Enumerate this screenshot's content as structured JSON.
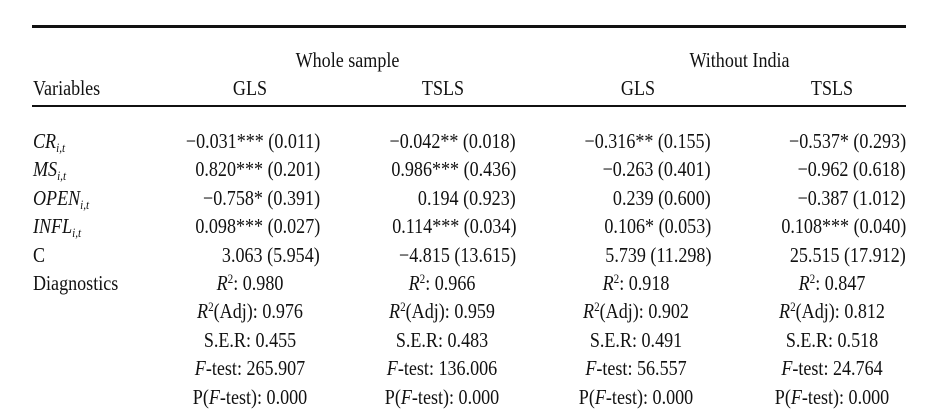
{
  "groups": {
    "whole": "Whole sample",
    "without": "Without India"
  },
  "columns": {
    "var": "Variables",
    "c1": "GLS",
    "c2": "TSLS",
    "c3": "GLS",
    "c4": "TSLS"
  },
  "rows": [
    {
      "base": "CR",
      "sub": "i,t",
      "vals": [
        "−0.031*** (0.011)",
        "−0.042** (0.018)",
        "−0.316** (0.155)",
        "−0.537* (0.293)"
      ]
    },
    {
      "base": "MS",
      "sub": "i,t",
      "vals": [
        "0.820*** (0.201)",
        "0.986*** (0.436)",
        "−0.263 (0.401)",
        "−0.962 (0.618)"
      ]
    },
    {
      "base": "OPEN",
      "sub": "i,t",
      "vals": [
        "−0.758* (0.391)",
        "0.194 (0.923)",
        "0.239 (0.600)",
        "−0.387 (1.012)"
      ]
    },
    {
      "base": "INFL",
      "sub": "i,t",
      "vals": [
        "0.098*** (0.027)",
        "0.114*** (0.034)",
        "0.106* (0.053)",
        "0.108*** (0.040)"
      ]
    },
    {
      "base": "C",
      "vals": [
        "3.063 (5.954)",
        "−4.815 (13.615)",
        "5.739 (11.298)",
        "25.515 (17.912)"
      ]
    }
  ],
  "diagnostics": {
    "label": "Diagnostics",
    "r2_prefix": "R",
    "r2_sup": "2",
    "r2_suffix": ": ",
    "r2_values": [
      "0.980",
      "0.966",
      "0.918",
      "0.847"
    ],
    "adj_prefix": "R",
    "adj_sup": "2",
    "adj_suffix": "(Adj): ",
    "adj_values": [
      "0.976",
      "0.959",
      "0.902",
      "0.812"
    ],
    "ser_label": "S.E.R: ",
    "ser_values": [
      "0.455",
      "0.483",
      "0.491",
      "0.518"
    ],
    "f_italic": "F",
    "f_suffix": "-test: ",
    "f_values": [
      "265.907",
      "136.006",
      "56.557",
      "24.764"
    ],
    "p_prefix": "P(",
    "p_italic": "F",
    "p_suffix": "-test): ",
    "p_values": [
      "0.000",
      "0.000",
      "0.000",
      "0.000"
    ]
  }
}
